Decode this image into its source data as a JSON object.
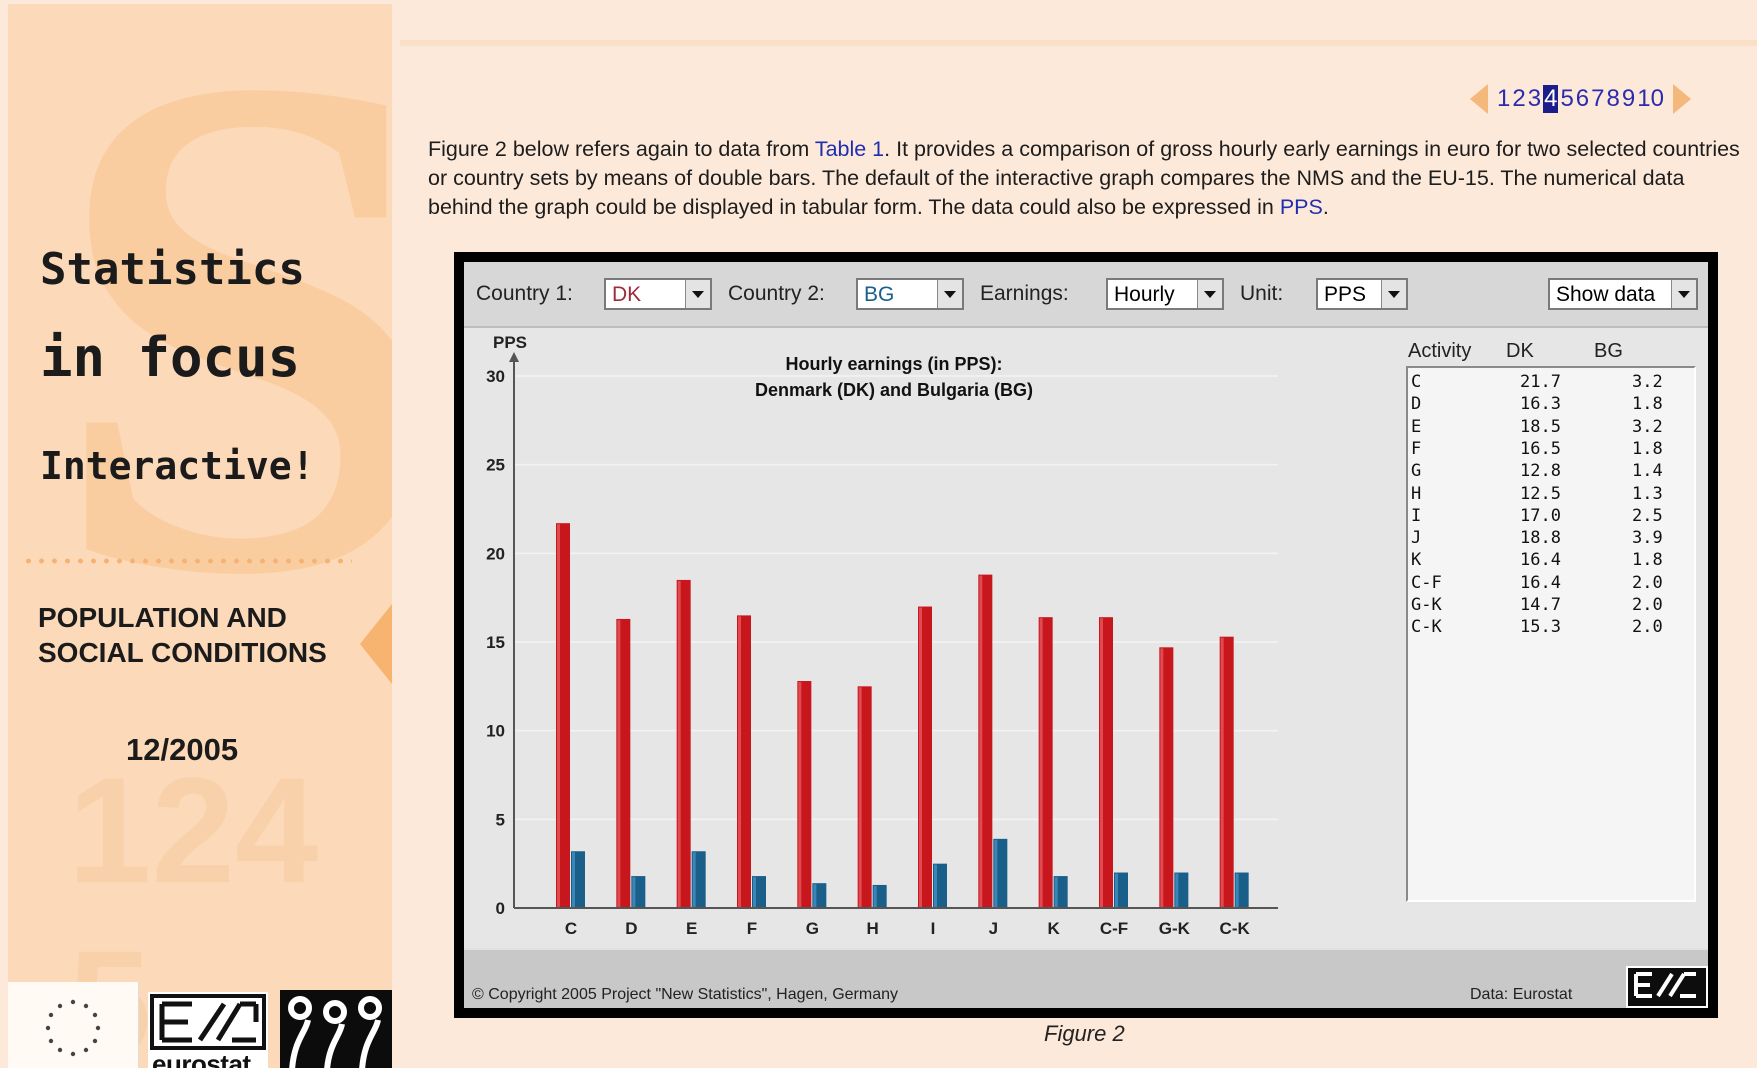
{
  "sidebar": {
    "title_line1": "Statistics",
    "title_line2": "in focus",
    "title_line3": "Interactive!",
    "section": "POPULATION AND SOCIAL CONDITIONS",
    "issue": "12/2005",
    "logo_text": "eurostat"
  },
  "pager": {
    "pages": [
      "1",
      "2",
      "3",
      "4",
      "5",
      "6",
      "7",
      "8",
      "9",
      "10"
    ],
    "active": "4"
  },
  "intro": {
    "p1": "Figure 2 below refers again to data from ",
    "link_table": "Table 1",
    "p2": ". It provides a comparison of gross hourly early earnings in euro for two selected countries or country sets by means of double bars. The default of the interactive graph compares the NMS and the EU-15. The numerical data behind the graph could be displayed in tabular form. The data could also be expressed in ",
    "link_pps": "PPS",
    "p3": "."
  },
  "toolbar": {
    "country1_label": "Country 1:",
    "country1_value": "DK",
    "country2_label": "Country 2:",
    "country2_value": "BG",
    "earnings_label": "Earnings:",
    "earnings_value": "Hourly",
    "unit_label": "Unit:",
    "unit_value": "PPS",
    "show_data": "Show data"
  },
  "chart_data": {
    "type": "bar",
    "title": "Hourly earnings (in PPS):",
    "subtitle": "Denmark (DK) and Bulgaria (BG)",
    "ylabel": "PPS",
    "ylim": [
      0,
      30
    ],
    "yticks": [
      0,
      5,
      10,
      15,
      20,
      25,
      30
    ],
    "categories": [
      "C",
      "D",
      "E",
      "F",
      "G",
      "H",
      "I",
      "J",
      "K",
      "C-F",
      "G-K",
      "C-K"
    ],
    "series": [
      {
        "name": "DK",
        "color": "#c8161d",
        "values": [
          21.7,
          16.3,
          18.5,
          16.5,
          12.8,
          12.5,
          17.0,
          18.8,
          16.4,
          16.4,
          14.7,
          15.3
        ]
      },
      {
        "name": "BG",
        "color": "#1a5f8a",
        "values": [
          3.2,
          1.8,
          3.2,
          1.8,
          1.4,
          1.3,
          2.5,
          3.9,
          1.8,
          2.0,
          2.0,
          2.0
        ]
      }
    ],
    "grid": true
  },
  "table": {
    "headers": [
      "Activity",
      "DK",
      "BG"
    ],
    "rows": [
      [
        "C",
        "21.7",
        "3.2"
      ],
      [
        "D",
        "16.3",
        "1.8"
      ],
      [
        "E",
        "18.5",
        "3.2"
      ],
      [
        "F",
        "16.5",
        "1.8"
      ],
      [
        "G",
        "12.8",
        "1.4"
      ],
      [
        "H",
        "12.5",
        "1.3"
      ],
      [
        "I",
        "17.0",
        "2.5"
      ],
      [
        "J",
        "18.8",
        "3.9"
      ],
      [
        "K",
        "16.4",
        "1.8"
      ],
      [
        "C-F",
        "16.4",
        "2.0"
      ],
      [
        "G-K",
        "14.7",
        "2.0"
      ],
      [
        "C-K",
        "15.3",
        "2.0"
      ]
    ]
  },
  "footer": {
    "copyright": "© Copyright 2005 Project \"New Statistics\", Hagen, Germany",
    "source": "Data: Eurostat"
  },
  "caption": "Figure 2"
}
